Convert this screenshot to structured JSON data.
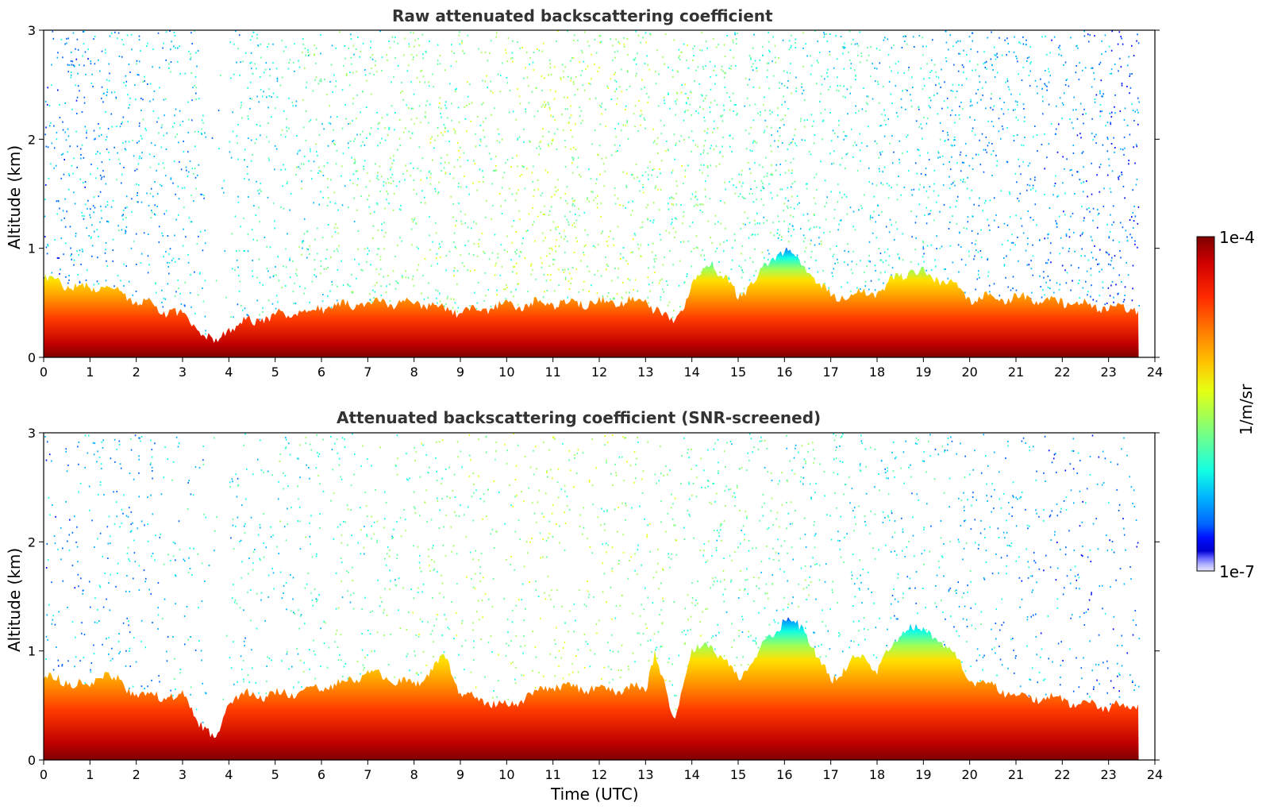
{
  "chart_data": [
    {
      "type": "heatmap",
      "title": "Raw attenuated backscattering coefficient",
      "xlabel": "",
      "ylabel": "Altitude (km)",
      "xlim": [
        0,
        24
      ],
      "ylim": [
        0,
        3
      ],
      "x_ticks": [
        "0",
        "1",
        "2",
        "3",
        "4",
        "5",
        "6",
        "7",
        "8",
        "9",
        "10",
        "11",
        "12",
        "13",
        "14",
        "15",
        "16",
        "17",
        "18",
        "19",
        "20",
        "21",
        "22",
        "23",
        "24"
      ],
      "y_ticks": [
        "0",
        "1",
        "2",
        "3"
      ],
      "data_end_time": 23.65,
      "layer_top_km": [
        [
          0,
          0.72
        ],
        [
          1,
          0.62
        ],
        [
          1.3,
          0.68
        ],
        [
          2,
          0.52
        ],
        [
          3,
          0.38
        ],
        [
          3.7,
          0.12
        ],
        [
          4,
          0.28
        ],
        [
          5,
          0.38
        ],
        [
          6,
          0.45
        ],
        [
          7,
          0.5
        ],
        [
          8,
          0.5
        ],
        [
          9,
          0.42
        ],
        [
          10,
          0.48
        ],
        [
          11,
          0.5
        ],
        [
          12,
          0.5
        ],
        [
          13,
          0.52
        ],
        [
          13.6,
          0.3
        ],
        [
          14,
          0.65
        ],
        [
          14.4,
          0.9
        ],
        [
          15,
          0.55
        ],
        [
          16,
          1.0
        ],
        [
          16.5,
          0.8
        ],
        [
          17,
          0.55
        ],
        [
          18,
          0.6
        ],
        [
          18.7,
          0.8
        ],
        [
          19.5,
          0.7
        ],
        [
          20,
          0.55
        ],
        [
          21,
          0.55
        ],
        [
          22,
          0.5
        ],
        [
          23,
          0.45
        ],
        [
          23.65,
          0.45
        ]
      ],
      "noise_description": "sparse speckle above layer up to 3 km"
    },
    {
      "type": "heatmap",
      "title": "Attenuated backscattering coefficient (SNR-screened)",
      "xlabel": "Time (UTC)",
      "ylabel": "Altitude (km)",
      "xlim": [
        0,
        24
      ],
      "ylim": [
        0,
        3
      ],
      "x_ticks": [
        "0",
        "1",
        "2",
        "3",
        "4",
        "5",
        "6",
        "7",
        "8",
        "9",
        "10",
        "11",
        "12",
        "13",
        "14",
        "15",
        "16",
        "17",
        "18",
        "19",
        "20",
        "21",
        "22",
        "23",
        "24"
      ],
      "y_ticks": [
        "0",
        "1",
        "2",
        "3"
      ],
      "data_end_time": 23.65,
      "layer_top_km": [
        [
          0,
          0.76
        ],
        [
          1,
          0.68
        ],
        [
          1.3,
          0.8
        ],
        [
          2,
          0.6
        ],
        [
          3,
          0.58
        ],
        [
          3.7,
          0.15
        ],
        [
          4,
          0.58
        ],
        [
          5,
          0.6
        ],
        [
          6,
          0.65
        ],
        [
          7,
          0.8
        ],
        [
          8,
          0.68
        ],
        [
          8.7,
          0.95
        ],
        [
          9,
          0.6
        ],
        [
          10,
          0.5
        ],
        [
          11,
          0.68
        ],
        [
          12,
          0.65
        ],
        [
          13,
          0.65
        ],
        [
          13.2,
          1.0
        ],
        [
          13.6,
          0.35
        ],
        [
          14,
          1.0
        ],
        [
          14.4,
          1.05
        ],
        [
          15,
          0.75
        ],
        [
          16,
          1.3
        ],
        [
          16.5,
          1.15
        ],
        [
          17,
          0.7
        ],
        [
          17.5,
          0.95
        ],
        [
          18,
          0.85
        ],
        [
          18.7,
          1.25
        ],
        [
          19.5,
          1.05
        ],
        [
          20,
          0.75
        ],
        [
          21,
          0.6
        ],
        [
          22,
          0.55
        ],
        [
          23,
          0.48
        ],
        [
          23.65,
          0.5
        ]
      ]
    }
  ],
  "colorbar": {
    "label": "1/m/sr",
    "max_label": "1e-4",
    "min_label": "1e-7",
    "colors": [
      "#7f0000",
      "#d10000",
      "#ff2a00",
      "#ff7a00",
      "#ffc500",
      "#e6ff12",
      "#a0ff57",
      "#5bffa0",
      "#13ffe3",
      "#00b4ff",
      "#0064ff",
      "#0010ff",
      "#0000d0",
      "#6060ff",
      "#b0b0ff",
      "#e6e6ff"
    ]
  }
}
